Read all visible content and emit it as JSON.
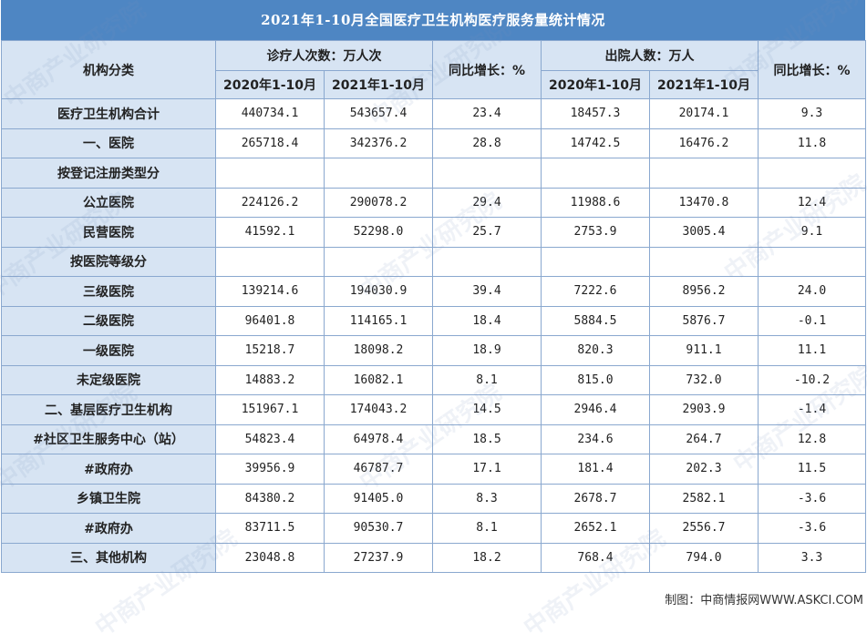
{
  "title": "2021年1-10月全国医疗卫生机构医疗服务量统计情况",
  "header": {
    "category": "机构分类",
    "visits_group": "诊疗人次数：万人次",
    "discharge_group": "出院人数：万人",
    "yoy_visits": "同比增长：%",
    "yoy_discharge": "同比增长：%",
    "visits_2020": "2020年1-10月",
    "visits_2021": "2021年1-10月",
    "discharge_2020": "2020年1-10月",
    "discharge_2021": "2021年1-10月"
  },
  "rows": [
    {
      "category": "医疗卫生机构合计",
      "v2020": "440734.1",
      "v2021": "543657.4",
      "vyoy": "23.4",
      "d2020": "18457.3",
      "d2021": "20174.1",
      "dyoy": "9.3"
    },
    {
      "category": "一、医院",
      "v2020": "265718.4",
      "v2021": "342376.2",
      "vyoy": "28.8",
      "d2020": "14742.5",
      "d2021": "16476.2",
      "dyoy": "11.8"
    },
    {
      "category": "按登记注册类型分",
      "v2020": "",
      "v2021": "",
      "vyoy": "",
      "d2020": "",
      "d2021": "",
      "dyoy": ""
    },
    {
      "category": "公立医院",
      "v2020": "224126.2",
      "v2021": "290078.2",
      "vyoy": "29.4",
      "d2020": "11988.6",
      "d2021": "13470.8",
      "dyoy": "12.4"
    },
    {
      "category": "民营医院",
      "v2020": "41592.1",
      "v2021": "52298.0",
      "vyoy": "25.7",
      "d2020": "2753.9",
      "d2021": "3005.4",
      "dyoy": "9.1"
    },
    {
      "category": "按医院等级分",
      "v2020": "",
      "v2021": "",
      "vyoy": "",
      "d2020": "",
      "d2021": "",
      "dyoy": ""
    },
    {
      "category": "三级医院",
      "v2020": "139214.6",
      "v2021": "194030.9",
      "vyoy": "39.4",
      "d2020": "7222.6",
      "d2021": "8956.2",
      "dyoy": "24.0"
    },
    {
      "category": "二级医院",
      "v2020": "96401.8",
      "v2021": "114165.1",
      "vyoy": "18.4",
      "d2020": "5884.5",
      "d2021": "5876.7",
      "dyoy": "-0.1"
    },
    {
      "category": "一级医院",
      "v2020": "15218.7",
      "v2021": "18098.2",
      "vyoy": "18.9",
      "d2020": "820.3",
      "d2021": "911.1",
      "dyoy": "11.1"
    },
    {
      "category": "未定级医院",
      "v2020": "14883.2",
      "v2021": "16082.1",
      "vyoy": "8.1",
      "d2020": "815.0",
      "d2021": "732.0",
      "dyoy": "-10.2"
    },
    {
      "category": "二、基层医疗卫生机构",
      "v2020": "151967.1",
      "v2021": "174043.2",
      "vyoy": "14.5",
      "d2020": "2946.4",
      "d2021": "2903.9",
      "dyoy": "-1.4"
    },
    {
      "category": "#社区卫生服务中心（站）",
      "v2020": "54823.4",
      "v2021": "64978.4",
      "vyoy": "18.5",
      "d2020": "234.6",
      "d2021": "264.7",
      "dyoy": "12.8"
    },
    {
      "category": "#政府办",
      "v2020": "39956.9",
      "v2021": "46787.7",
      "vyoy": "17.1",
      "d2020": "181.4",
      "d2021": "202.3",
      "dyoy": "11.5"
    },
    {
      "category": "乡镇卫生院",
      "v2020": "84380.2",
      "v2021": "91405.0",
      "vyoy": "8.3",
      "d2020": "2678.7",
      "d2021": "2582.1",
      "dyoy": "-3.6"
    },
    {
      "category": "#政府办",
      "v2020": "83711.5",
      "v2021": "90530.7",
      "vyoy": "8.1",
      "d2020": "2652.1",
      "d2021": "2556.7",
      "dyoy": "-3.6"
    },
    {
      "category": "三、其他机构",
      "v2020": "23048.8",
      "v2021": "27237.9",
      "vyoy": "18.2",
      "d2020": "768.4",
      "d2021": "794.0",
      "dyoy": "3.3"
    }
  ],
  "footer": "制图：中商情报网WWW.ASKCI.COM",
  "watermark": "中商产业研究院",
  "colors": {
    "title_bg": "#4e86c3",
    "header_bg": "#d7e4f3",
    "border": "#8aa8cf"
  }
}
